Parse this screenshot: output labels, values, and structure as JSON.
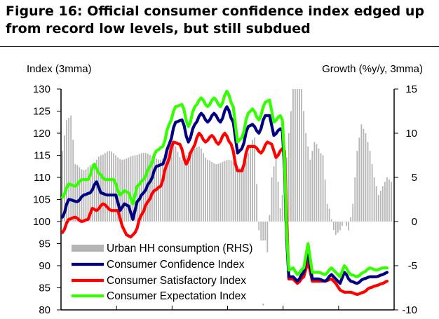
{
  "figure": {
    "title": "Figure 16: Official consumer confidence index edged up from record low levels, but still subdued"
  },
  "chart_data": {
    "type": "line",
    "title": "Figure 16: Official consumer confidence index edged up from record low levels, but still subdued",
    "ylabel": "Index (3mma)",
    "y2label": "Growth (%y/y, 3mma)",
    "ylim": [
      80,
      130
    ],
    "y2lim": [
      -10,
      15
    ],
    "yticks": [
      "130",
      "125",
      "120",
      "115",
      "110",
      "105",
      "100",
      "95",
      "90",
      "85",
      "80"
    ],
    "y2ticks": [
      "15",
      "10",
      "5",
      "0",
      "-5",
      "-10"
    ],
    "x_count": 155,
    "x_year_ticks": 6,
    "legend": [
      "Urban HH consumption (RHS)",
      "Consumer Confidence Index",
      "Consumer Satisfactory Index",
      "Consumer Expectation Index"
    ],
    "colors": {
      "bars": "#b5b5b5",
      "confidence": "#000080",
      "satisfactory": "#ff0000",
      "expectation": "#33ff00"
    },
    "series": [
      {
        "name": "Urban HH consumption (RHS)",
        "axis": "right",
        "kind": "bar",
        "anchors": [
          [
            0,
            8.0
          ],
          [
            2,
            11.5
          ],
          [
            4,
            12.0
          ],
          [
            6,
            6.5
          ],
          [
            10,
            5.8
          ],
          [
            14,
            6.5
          ],
          [
            18,
            7.5
          ],
          [
            22,
            8.0
          ],
          [
            28,
            7.0
          ],
          [
            34,
            7.5
          ],
          [
            38,
            7.8
          ],
          [
            46,
            7.0
          ],
          [
            52,
            8.8
          ],
          [
            56,
            7.0
          ],
          [
            60,
            8.0
          ],
          [
            64,
            8.5
          ],
          [
            68,
            7.0
          ],
          [
            72,
            6.5
          ],
          [
            78,
            7.0
          ],
          [
            84,
            6.0
          ],
          [
            90,
            9.5
          ],
          [
            92,
            -1.0
          ],
          [
            94,
            -9.5
          ],
          [
            96,
            -3.5
          ],
          [
            98,
            5.0
          ],
          [
            100,
            7.5
          ],
          [
            102,
            1.5
          ],
          [
            104,
            4.5
          ],
          [
            106,
            10.0
          ],
          [
            108,
            15.0
          ],
          [
            112,
            15.0
          ],
          [
            114,
            10.0
          ],
          [
            116,
            7.0
          ],
          [
            118,
            9.0
          ],
          [
            122,
            7.5
          ],
          [
            124,
            2.0
          ],
          [
            128,
            -1.5
          ],
          [
            130,
            -1.0
          ],
          [
            132,
            0.0
          ],
          [
            134,
            -1.0
          ],
          [
            136,
            2.0
          ],
          [
            138,
            8.0
          ],
          [
            140,
            11.0
          ],
          [
            142,
            10.0
          ],
          [
            144,
            8.0
          ],
          [
            146,
            5.0
          ],
          [
            148,
            3.0
          ],
          [
            150,
            4.0
          ],
          [
            152,
            5.0
          ],
          [
            154,
            4.5
          ]
        ]
      },
      {
        "name": "Consumer Confidence Index",
        "axis": "left",
        "anchors": [
          [
            0,
            101.0
          ],
          [
            3,
            105.0
          ],
          [
            7,
            104.5
          ],
          [
            10,
            106.0
          ],
          [
            13,
            106.5
          ],
          [
            16,
            109.0
          ],
          [
            18,
            106.5
          ],
          [
            21,
            106.0
          ],
          [
            25,
            106.0
          ],
          [
            27,
            102.5
          ],
          [
            29,
            104.0
          ],
          [
            31,
            103.5
          ],
          [
            33,
            100.5
          ],
          [
            35,
            104.5
          ],
          [
            38,
            106.5
          ],
          [
            41,
            109.0
          ],
          [
            44,
            112.5
          ],
          [
            47,
            113.0
          ],
          [
            50,
            117.5
          ],
          [
            53,
            122.5
          ],
          [
            56,
            123.0
          ],
          [
            59,
            118.0
          ],
          [
            62,
            122.0
          ],
          [
            65,
            124.5
          ],
          [
            68,
            122.5
          ],
          [
            71,
            124.5
          ],
          [
            74,
            122.5
          ],
          [
            77,
            126.0
          ],
          [
            80,
            122.5
          ],
          [
            82,
            115.5
          ],
          [
            84,
            116.5
          ],
          [
            87,
            121.5
          ],
          [
            89,
            122.0
          ],
          [
            92,
            120.0
          ],
          [
            95,
            124.0
          ],
          [
            97,
            124.0
          ],
          [
            99,
            119.5
          ],
          [
            102,
            121.0
          ],
          [
            103,
            120.5
          ],
          [
            106,
            87.5
          ],
          [
            108,
            87.5
          ],
          [
            110,
            86.5
          ],
          [
            113,
            88.5
          ],
          [
            115,
            93.5
          ],
          [
            117,
            87.0
          ],
          [
            120,
            87.0
          ],
          [
            123,
            86.5
          ],
          [
            126,
            88.0
          ],
          [
            128,
            87.0
          ],
          [
            130,
            86.0
          ],
          [
            132,
            88.5
          ],
          [
            135,
            86.5
          ],
          [
            138,
            86.0
          ],
          [
            141,
            87.0
          ],
          [
            144,
            87.5
          ],
          [
            147,
            87.5
          ],
          [
            150,
            88.0
          ],
          [
            152,
            88.5
          ]
        ]
      },
      {
        "name": "Consumer Satisfactory Index",
        "axis": "left",
        "anchors": [
          [
            0,
            97.5
          ],
          [
            3,
            100.5
          ],
          [
            6,
            101.0
          ],
          [
            9,
            100.0
          ],
          [
            12,
            100.5
          ],
          [
            14,
            103.0
          ],
          [
            16,
            102.5
          ],
          [
            19,
            104.0
          ],
          [
            23,
            102.5
          ],
          [
            26,
            102.5
          ],
          [
            28,
            99.0
          ],
          [
            30,
            97.0
          ],
          [
            32,
            96.5
          ],
          [
            34,
            97.5
          ],
          [
            37,
            101.5
          ],
          [
            40,
            104.5
          ],
          [
            43,
            107.0
          ],
          [
            46,
            108.0
          ],
          [
            49,
            113.0
          ],
          [
            52,
            118.0
          ],
          [
            55,
            117.5
          ],
          [
            58,
            113.0
          ],
          [
            61,
            116.5
          ],
          [
            64,
            120.0
          ],
          [
            67,
            118.0
          ],
          [
            70,
            119.5
          ],
          [
            73,
            117.5
          ],
          [
            76,
            120.0
          ],
          [
            79,
            117.5
          ],
          [
            82,
            111.5
          ],
          [
            84,
            111.5
          ],
          [
            87,
            117.0
          ],
          [
            90,
            117.0
          ],
          [
            93,
            115.5
          ],
          [
            96,
            118.0
          ],
          [
            98,
            117.5
          ],
          [
            100,
            114.5
          ],
          [
            103,
            116.5
          ],
          [
            104,
            116.0
          ],
          [
            106,
            87.0
          ],
          [
            108,
            87.0
          ],
          [
            110,
            86.0
          ],
          [
            113,
            87.5
          ],
          [
            115,
            91.0
          ],
          [
            117,
            86.5
          ],
          [
            120,
            86.5
          ],
          [
            123,
            86.5
          ],
          [
            126,
            87.0
          ],
          [
            128,
            86.0
          ],
          [
            130,
            84.5
          ],
          [
            132,
            84.0
          ],
          [
            135,
            84.0
          ],
          [
            138,
            83.5
          ],
          [
            141,
            84.0
          ],
          [
            144,
            85.0
          ],
          [
            147,
            85.5
          ],
          [
            150,
            86.0
          ],
          [
            152,
            86.5
          ]
        ]
      },
      {
        "name": "Consumer Expectation Index",
        "axis": "left",
        "anchors": [
          [
            0,
            105.5
          ],
          [
            3,
            108.5
          ],
          [
            6,
            108.0
          ],
          [
            9,
            109.5
          ],
          [
            12,
            109.5
          ],
          [
            15,
            113.0
          ],
          [
            17,
            111.0
          ],
          [
            20,
            109.5
          ],
          [
            24,
            109.5
          ],
          [
            27,
            106.0
          ],
          [
            29,
            107.0
          ],
          [
            31,
            106.5
          ],
          [
            33,
            104.0
          ],
          [
            35,
            108.0
          ],
          [
            38,
            109.5
          ],
          [
            41,
            112.5
          ],
          [
            44,
            116.0
          ],
          [
            47,
            117.0
          ],
          [
            50,
            122.0
          ],
          [
            53,
            126.0
          ],
          [
            56,
            126.5
          ],
          [
            59,
            121.5
          ],
          [
            62,
            126.0
          ],
          [
            65,
            128.0
          ],
          [
            68,
            126.0
          ],
          [
            71,
            128.0
          ],
          [
            74,
            126.0
          ],
          [
            77,
            129.5
          ],
          [
            80,
            126.0
          ],
          [
            82,
            118.0
          ],
          [
            84,
            119.0
          ],
          [
            87,
            124.5
          ],
          [
            89,
            125.5
          ],
          [
            92,
            123.0
          ],
          [
            95,
            127.0
          ],
          [
            97,
            127.5
          ],
          [
            99,
            122.5
          ],
          [
            102,
            124.0
          ],
          [
            103,
            123.0
          ],
          [
            106,
            89.0
          ],
          [
            108,
            89.5
          ],
          [
            110,
            88.0
          ],
          [
            113,
            89.5
          ],
          [
            115,
            95.0
          ],
          [
            117,
            88.5
          ],
          [
            120,
            88.5
          ],
          [
            123,
            88.0
          ],
          [
            126,
            89.5
          ],
          [
            128,
            88.5
          ],
          [
            130,
            87.5
          ],
          [
            132,
            90.0
          ],
          [
            135,
            88.0
          ],
          [
            138,
            87.5
          ],
          [
            141,
            88.5
          ],
          [
            144,
            89.5
          ],
          [
            147,
            89.0
          ],
          [
            150,
            89.5
          ],
          [
            152,
            89.5
          ]
        ]
      }
    ]
  }
}
